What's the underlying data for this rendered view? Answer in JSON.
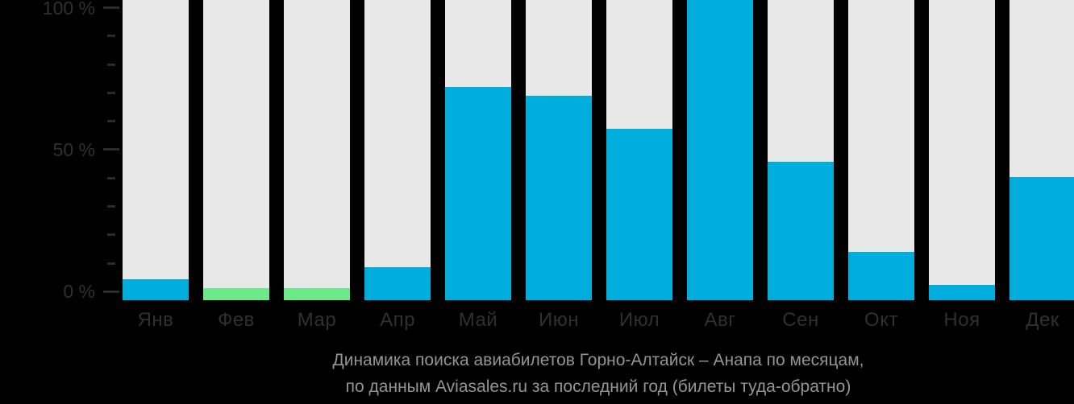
{
  "colors": {
    "background": "#000000",
    "bar_default": "#00aedd",
    "bar_highlight": "#6ee989",
    "bar_track": "#e8e8e8",
    "axis_text": "#303030",
    "tick": "#2c2c2c",
    "caption_text": "#949494"
  },
  "chart_data": {
    "type": "bar",
    "title": "Динамика поиска авиабилетов Горно-Алтайск – Анапа по месяцам,",
    "subtitle": "по данным Aviasales.ru за последний год (билеты туда-обратно)",
    "categories": [
      "Янв",
      "Фев",
      "Мар",
      "Апр",
      "Май",
      "Июн",
      "Июл",
      "Авг",
      "Сен",
      "Окт",
      "Ноя",
      "Дек"
    ],
    "values": [
      7,
      4,
      4,
      11,
      71,
      68,
      57,
      100,
      46,
      16,
      5,
      41
    ],
    "bar_colors": [
      "#00aedd",
      "#6ee989",
      "#6ee989",
      "#00aedd",
      "#00aedd",
      "#00aedd",
      "#00aedd",
      "#00aedd",
      "#00aedd",
      "#00aedd",
      "#00aedd",
      "#00aedd"
    ],
    "track_color": "#e8e8e8",
    "unit": "%",
    "ylim": [
      0,
      100
    ],
    "y_major_ticks": [
      {
        "pct": 100,
        "label": "100 %"
      },
      {
        "pct": 50,
        "label": "50 %"
      },
      {
        "pct": 0,
        "label": "0 %"
      }
    ],
    "y_minor_tick_step": 10,
    "grid": false,
    "legend": "none"
  }
}
